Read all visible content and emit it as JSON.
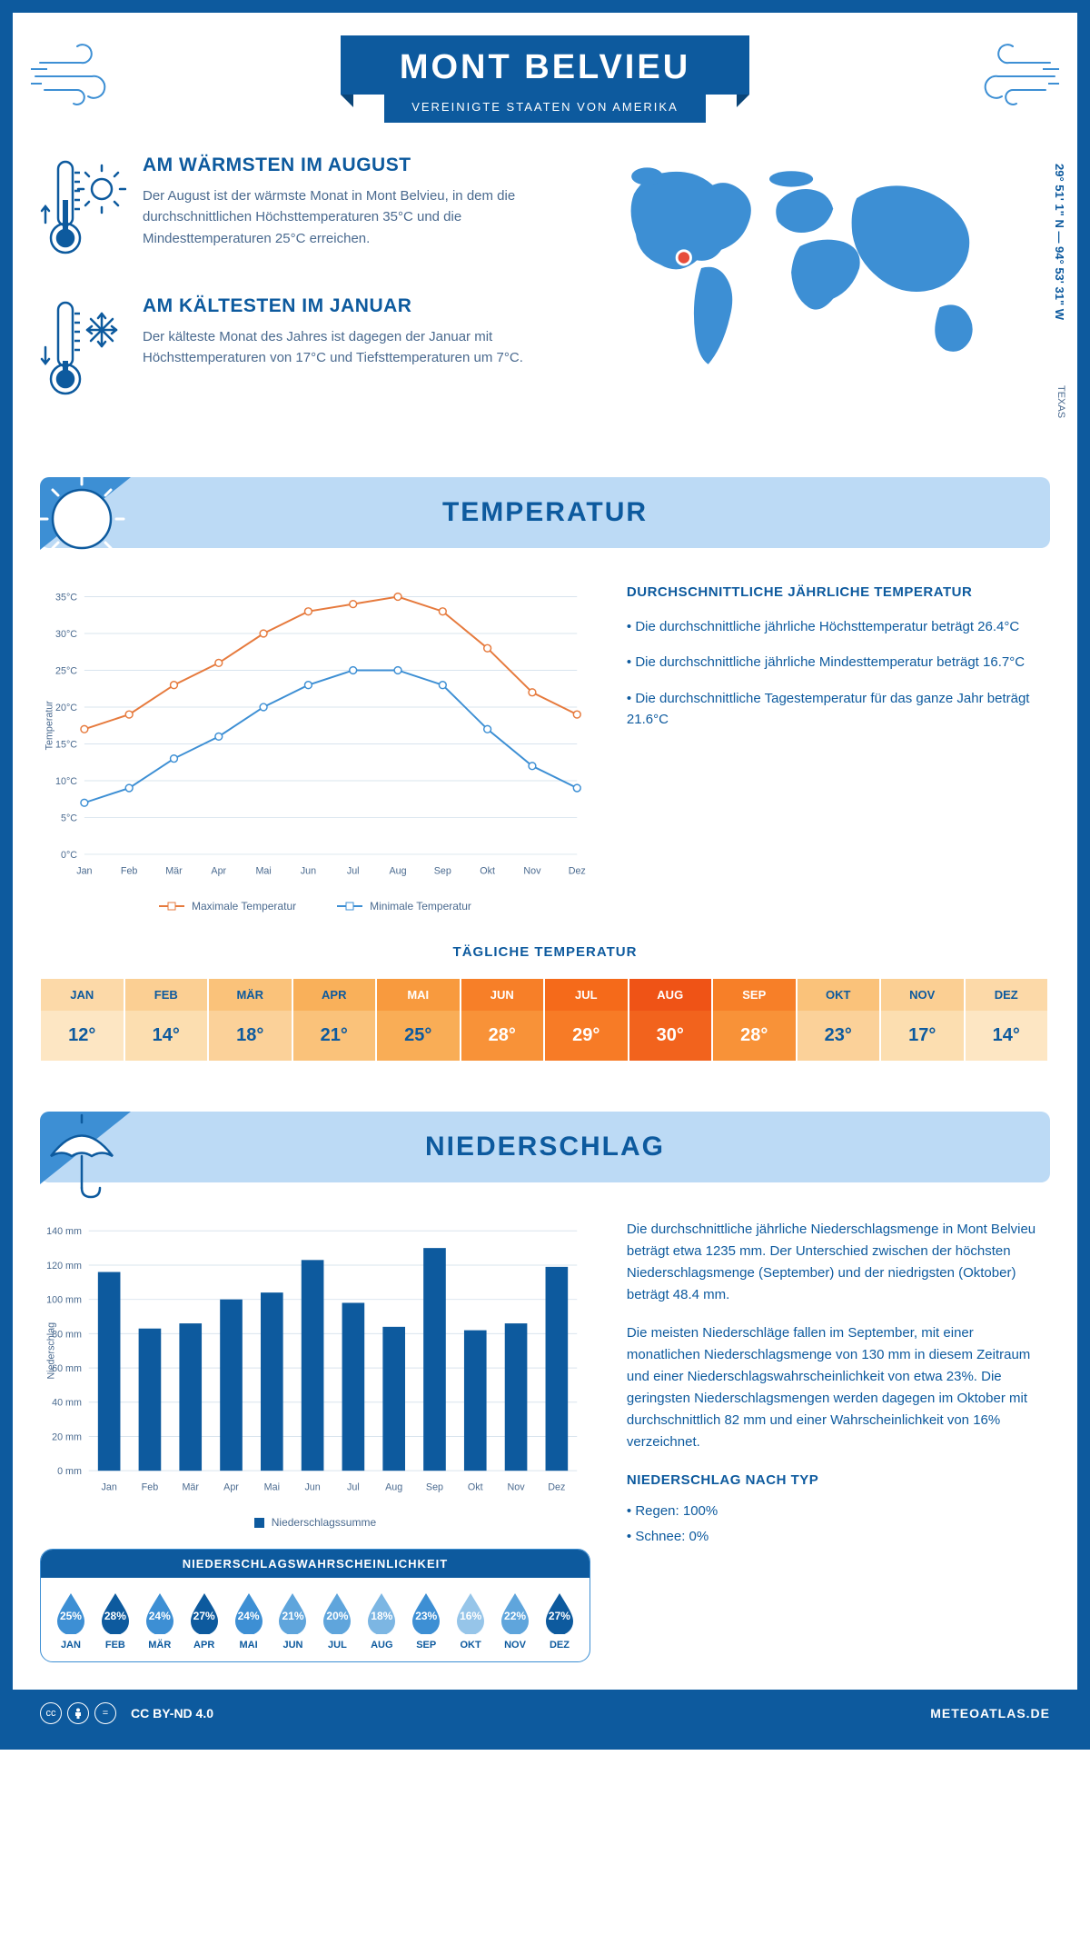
{
  "header": {
    "title": "MONT BELVIEU",
    "subtitle": "VEREINIGTE STAATEN VON AMERIKA",
    "title_fontsize": 38,
    "title_bg": "#0d5a9e",
    "title_color": "#ffffff"
  },
  "intro": {
    "warm": {
      "heading": "AM WÄRMSTEN IM AUGUST",
      "text": "Der August ist der wärmste Monat in Mont Belvieu, in dem die durchschnittlichen Höchsttemperaturen 35°C und die Mindesttemperaturen 25°C erreichen.",
      "heading_fontsize": 21
    },
    "cold": {
      "heading": "AM KÄLTESTEN IM JANUAR",
      "text": "Der kälteste Monat des Jahres ist dagegen der Januar mit Höchsttemperaturen von 17°C und Tiefsttemperaturen um 7°C.",
      "heading_fontsize": 21
    },
    "coords": "29° 51' 1\" N — 94° 53' 31\" W",
    "region": "TEXAS",
    "map_color": "#3d8fd4",
    "marker_color": "#e74c3c"
  },
  "temperature": {
    "section_title": "TEMPERATUR",
    "section_title_fontsize": 30,
    "section_bg": "#bcdaf5",
    "info_heading": "DURCHSCHNITTLICHE JÄHRLICHE TEMPERATUR",
    "bullets": [
      "• Die durchschnittliche jährliche Höchsttemperatur beträgt 26.4°C",
      "• Die durchschnittliche jährliche Mindesttemperatur beträgt 16.7°C",
      "• Die durchschnittliche Tagestemperatur für das ganze Jahr beträgt 21.6°C"
    ],
    "chart": {
      "type": "line",
      "months": [
        "Jan",
        "Feb",
        "Mär",
        "Apr",
        "Mai",
        "Jun",
        "Jul",
        "Aug",
        "Sep",
        "Okt",
        "Nov",
        "Dez"
      ],
      "max_series": {
        "label": "Maximale Temperatur",
        "color": "#e67a3d",
        "values": [
          17,
          19,
          23,
          26,
          30,
          33,
          34,
          35,
          33,
          28,
          22,
          19
        ]
      },
      "min_series": {
        "label": "Minimale Temperatur",
        "color": "#3d8fd4",
        "values": [
          7,
          9,
          13,
          16,
          20,
          23,
          25,
          25,
          23,
          17,
          12,
          9
        ]
      },
      "ylim": [
        0,
        35
      ],
      "ytick_step": 5,
      "ylabel": "Temperatur",
      "grid_color": "#d9e4ee",
      "axis_color": "#4a6a8f",
      "label_fontsize": 11,
      "line_width": 2,
      "marker_size": 4
    },
    "daily": {
      "heading": "TÄGLICHE TEMPERATUR",
      "months": [
        "JAN",
        "FEB",
        "MÄR",
        "APR",
        "MAI",
        "JUN",
        "JUL",
        "AUG",
        "SEP",
        "OKT",
        "NOV",
        "DEZ"
      ],
      "values": [
        "12°",
        "14°",
        "18°",
        "21°",
        "25°",
        "28°",
        "29°",
        "30°",
        "28°",
        "23°",
        "17°",
        "14°"
      ],
      "head_colors": [
        "#fcd9a8",
        "#fbcf93",
        "#fac27a",
        "#f9b05a",
        "#f89a3e",
        "#f77f28",
        "#f56a1a",
        "#ef5316",
        "#f77f28",
        "#fac27a",
        "#fbcf93",
        "#fcd9a8"
      ],
      "val_colors": [
        "#fde6c3",
        "#fcdeb0",
        "#fbd199",
        "#fac27a",
        "#f9ad56",
        "#f89238",
        "#f77b26",
        "#f2631d",
        "#f89238",
        "#fbd199",
        "#fcdeb0",
        "#fde6c3"
      ],
      "text_color": "#0d5a9e",
      "hot_text_color": "#ffffff"
    }
  },
  "precip": {
    "section_title": "NIEDERSCHLAG",
    "section_title_fontsize": 30,
    "para1": "Die durchschnittliche jährliche Niederschlagsmenge in Mont Belvieu beträgt etwa 1235 mm. Der Unterschied zwischen der höchsten Niederschlagsmenge (September) und der niedrigsten (Oktober) beträgt 48.4 mm.",
    "para2": "Die meisten Niederschläge fallen im September, mit einer monatlichen Niederschlagsmenge von 130 mm in diesem Zeitraum und einer Niederschlagswahrscheinlichkeit von etwa 23%. Die geringsten Niederschlagsmengen werden dagegen im Oktober mit durchschnittlich 82 mm und einer Wahrscheinlichkeit von 16% verzeichnet.",
    "type_heading": "NIEDERSCHLAG NACH TYP",
    "type_bullets": [
      "• Regen: 100%",
      "• Schnee: 0%"
    ],
    "chart": {
      "type": "bar",
      "months": [
        "Jan",
        "Feb",
        "Mär",
        "Apr",
        "Mai",
        "Jun",
        "Jul",
        "Aug",
        "Sep",
        "Okt",
        "Nov",
        "Dez"
      ],
      "values": [
        116,
        83,
        86,
        100,
        104,
        123,
        98,
        84,
        130,
        82,
        86,
        119
      ],
      "color": "#0d5a9e",
      "legend": "Niederschlagssumme",
      "ylim": [
        0,
        140
      ],
      "ytick_step": 20,
      "ylabel": "Niederschlag",
      "grid_color": "#d9e4ee",
      "axis_color": "#4a6a8f",
      "label_fontsize": 11,
      "bar_width": 0.55
    },
    "prob": {
      "heading": "NIEDERSCHLAGSWAHRSCHEINLICHKEIT",
      "months": [
        "JAN",
        "FEB",
        "MÄR",
        "APR",
        "MAI",
        "JUN",
        "JUL",
        "AUG",
        "SEP",
        "OKT",
        "NOV",
        "DEZ"
      ],
      "values": [
        "25%",
        "28%",
        "24%",
        "27%",
        "24%",
        "21%",
        "20%",
        "18%",
        "23%",
        "16%",
        "22%",
        "27%"
      ],
      "colors": [
        "#3d8fd4",
        "#0d5a9e",
        "#3d8fd4",
        "#0d5a9e",
        "#3d8fd4",
        "#5fa5dc",
        "#5fa5dc",
        "#7cb6e3",
        "#3d8fd4",
        "#96c5e9",
        "#5fa5dc",
        "#0d5a9e"
      ]
    }
  },
  "footer": {
    "license": "CC BY-ND 4.0",
    "site": "METEOATLAS.DE"
  },
  "colors": {
    "primary": "#0d5a9e",
    "light_blue": "#3d8fd4",
    "pale_blue": "#bcdaf5",
    "text_muted": "#4a6a8f"
  }
}
